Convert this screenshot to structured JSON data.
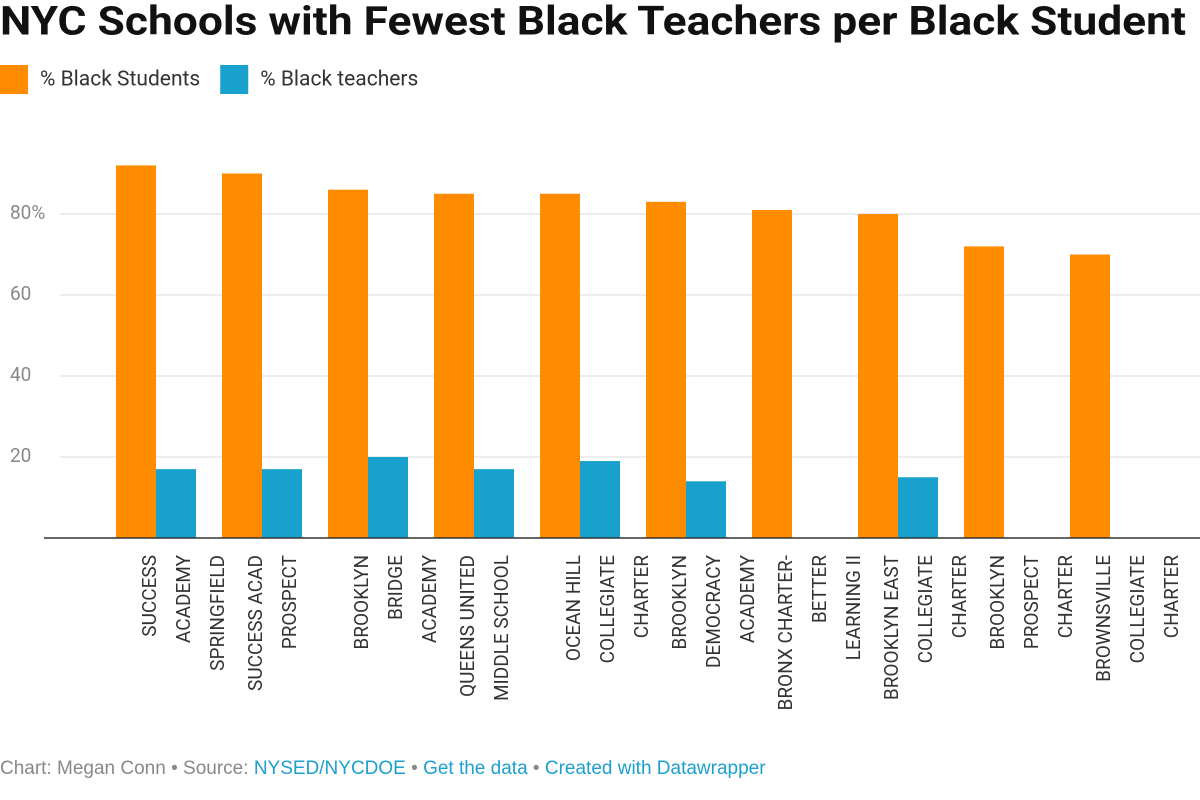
{
  "chart_data": {
    "type": "bar",
    "title": "NYC Schools with Fewest Black Teachers per Black Student",
    "categories": [
      [
        "SUCCESS",
        "ACADEMY",
        "SPRINGFIELD"
      ],
      [
        "SUCCESS ACAD",
        "PROSPECT"
      ],
      [
        "BROOKLYN",
        "BRIDGE",
        "ACADEMY"
      ],
      [
        "QUEENS UNITED",
        "MIDDLE SCHOOL"
      ],
      [
        "OCEAN HILL",
        "COLLEGIATE",
        "CHARTER"
      ],
      [
        "BROOKLYN",
        "DEMOCRACY",
        "ACADEMY"
      ],
      [
        "BRONX CHARTER-",
        "BETTER",
        "LEARNING II"
      ],
      [
        "BROOKLYN EAST",
        "COLLEGIATE",
        "CHARTER"
      ],
      [
        "BROOKLYN",
        "PROSPECT",
        "CHARTER"
      ],
      [
        "BROWNSVILLE",
        "COLLEGIATE",
        "CHARTER"
      ]
    ],
    "series": [
      {
        "name": "% Black Students",
        "color": "#ff8c00",
        "values": [
          92,
          90,
          86,
          85,
          85,
          83,
          81,
          80,
          72,
          70
        ]
      },
      {
        "name": "% Black teachers",
        "color": "#18a1cd",
        "values": [
          17,
          17,
          20,
          17,
          19,
          14,
          null,
          15,
          null,
          null
        ]
      }
    ],
    "ylim": [
      0,
      100
    ],
    "yticks": [
      20,
      40,
      60,
      {
        "value": 80,
        "label": "80%"
      }
    ],
    "grid": true,
    "legend": "top-left",
    "footer": {
      "credit": "Chart: Megan Conn",
      "separator": "•",
      "source_label": "Source:",
      "source": "NYSED/NYCDOE",
      "links": [
        "Get the data",
        "Created with Datawrapper"
      ]
    }
  }
}
